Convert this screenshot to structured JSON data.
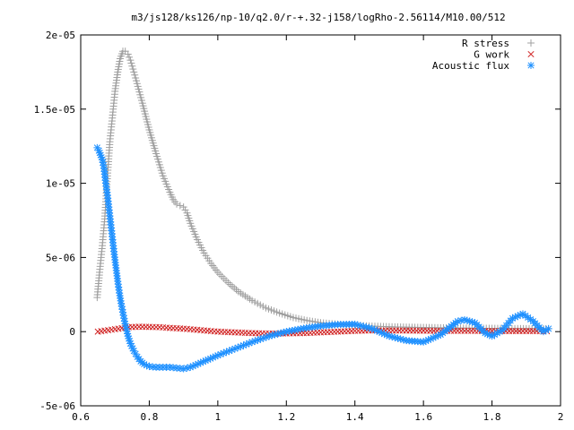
{
  "chart_data": {
    "type": "scatter",
    "title": "m3/js128/ks126/np-10/q2.0/r-+.32-j158/logRho-2.56114/M10.00/512",
    "xlabel": "",
    "ylabel": "",
    "xlim": [
      0.6,
      2.0
    ],
    "ylim": [
      -5e-06,
      2e-05
    ],
    "x_ticks": [
      "0.6",
      "0.8",
      "1",
      "1.2",
      "1.4",
      "1.6",
      "1.8",
      "2"
    ],
    "y_ticks": [
      "-5e-06",
      "0",
      "5e-06",
      "1e-05",
      "1.5e-05",
      "2e-05"
    ],
    "legend_position": "top-right",
    "grid": false,
    "series": [
      {
        "name": "R stress",
        "marker": "plus",
        "color": "#a0a0a0",
        "x": [
          0.648,
          0.655,
          0.663,
          0.67,
          0.678,
          0.685,
          0.693,
          0.7,
          0.708,
          0.715,
          0.723,
          0.73,
          0.738,
          0.745,
          0.76,
          0.78,
          0.8,
          0.82,
          0.84,
          0.86,
          0.87,
          0.88,
          0.89,
          0.9,
          0.91,
          0.92,
          0.94,
          0.96,
          0.98,
          1.0,
          1.03,
          1.06,
          1.1,
          1.14,
          1.18,
          1.22,
          1.26,
          1.3,
          1.35,
          1.4,
          1.45,
          1.5,
          1.55,
          1.6,
          1.65,
          1.7,
          1.75,
          1.8,
          1.85,
          1.9,
          1.95,
          1.965
        ],
        "y": [
          2.3e-06,
          4e-06,
          5.8e-06,
          7.6e-06,
          1.05e-05,
          1.28e-05,
          1.46e-05,
          1.62e-05,
          1.75e-05,
          1.84e-05,
          1.89e-05,
          1.89e-05,
          1.87e-05,
          1.83e-05,
          1.71e-05,
          1.54e-05,
          1.36e-05,
          1.2e-05,
          1.05e-05,
          9.4e-06,
          8.9e-06,
          8.6e-06,
          8.5e-06,
          8.4e-06,
          8e-06,
          7.3e-06,
          6.2e-06,
          5.3e-06,
          4.6e-06,
          4e-06,
          3.3e-06,
          2.7e-06,
          2.1e-06,
          1.6e-06,
          1.25e-06,
          9.5e-07,
          7.5e-07,
          6e-07,
          5e-07,
          4.2e-07,
          3.7e-07,
          3.3e-07,
          3e-07,
          2.8e-07,
          2.6e-07,
          2.4e-07,
          2.3e-07,
          2.2e-07,
          2.1e-07,
          2e-07,
          2e-07,
          2e-07
        ]
      },
      {
        "name": "G work",
        "marker": "cross",
        "color": "#d02020",
        "x": [
          0.65,
          0.68,
          0.71,
          0.74,
          0.77,
          0.8,
          0.83,
          0.86,
          0.9,
          0.95,
          1.0,
          1.05,
          1.1,
          1.15,
          1.2,
          1.25,
          1.3,
          1.35,
          1.4,
          1.45,
          1.5,
          1.55,
          1.6,
          1.65,
          1.7,
          1.75,
          1.8,
          1.85,
          1.9,
          1.96
        ],
        "y": [
          0.0,
          1e-07,
          2e-07,
          3e-07,
          3.3e-07,
          3.2e-07,
          3e-07,
          2.5e-07,
          2e-07,
          1e-07,
          0.0,
          -5e-08,
          -1e-07,
          -1.3e-07,
          -1.2e-07,
          -1e-07,
          -5e-08,
          0.0,
          5e-08,
          8e-08,
          8e-08,
          7e-08,
          6e-08,
          5e-08,
          5e-08,
          5e-08,
          4e-08,
          4e-08,
          4e-08,
          3e-08
        ]
      },
      {
        "name": "Acoustic flux",
        "marker": "star",
        "color": "#1e90ff",
        "x": [
          0.648,
          0.653,
          0.658,
          0.663,
          0.668,
          0.673,
          0.678,
          0.683,
          0.688,
          0.693,
          0.698,
          0.703,
          0.708,
          0.713,
          0.718,
          0.723,
          0.728,
          0.733,
          0.738,
          0.745,
          0.755,
          0.765,
          0.775,
          0.785,
          0.8,
          0.82,
          0.84,
          0.86,
          0.88,
          0.9,
          0.92,
          0.95,
          1.0,
          1.05,
          1.1,
          1.15,
          1.2,
          1.25,
          1.3,
          1.35,
          1.4,
          1.45,
          1.5,
          1.55,
          1.6,
          1.65,
          1.7,
          1.72,
          1.75,
          1.78,
          1.8,
          1.83,
          1.86,
          1.89,
          1.92,
          1.95,
          1.965
        ],
        "y": [
          1.24e-05,
          1.22e-05,
          1.19e-05,
          1.16e-05,
          1.1e-05,
          1e-05,
          9.2e-06,
          8.2e-06,
          7.2e-06,
          6.2e-06,
          5.2e-06,
          4.3e-06,
          3.4e-06,
          2.6e-06,
          1.9e-06,
          1.3e-06,
          7e-07,
          2e-07,
          -3e-07,
          -8e-07,
          -1.3e-06,
          -1.7e-06,
          -2e-06,
          -2.2e-06,
          -2.35e-06,
          -2.4e-06,
          -2.4e-06,
          -2.4e-06,
          -2.45e-06,
          -2.5e-06,
          -2.4e-06,
          -2.1e-06,
          -1.6e-06,
          -1.15e-06,
          -7e-07,
          -3e-07,
          0.0,
          2.2e-07,
          3.8e-07,
          4.8e-07,
          5e-07,
          2e-07,
          -3e-07,
          -6e-07,
          -7e-07,
          -2e-07,
          7e-07,
          8e-07,
          6e-07,
          -1e-07,
          -3e-07,
          1e-07,
          9e-07,
          1.2e-06,
          7e-07,
          0.0,
          2e-07
        ]
      }
    ]
  }
}
